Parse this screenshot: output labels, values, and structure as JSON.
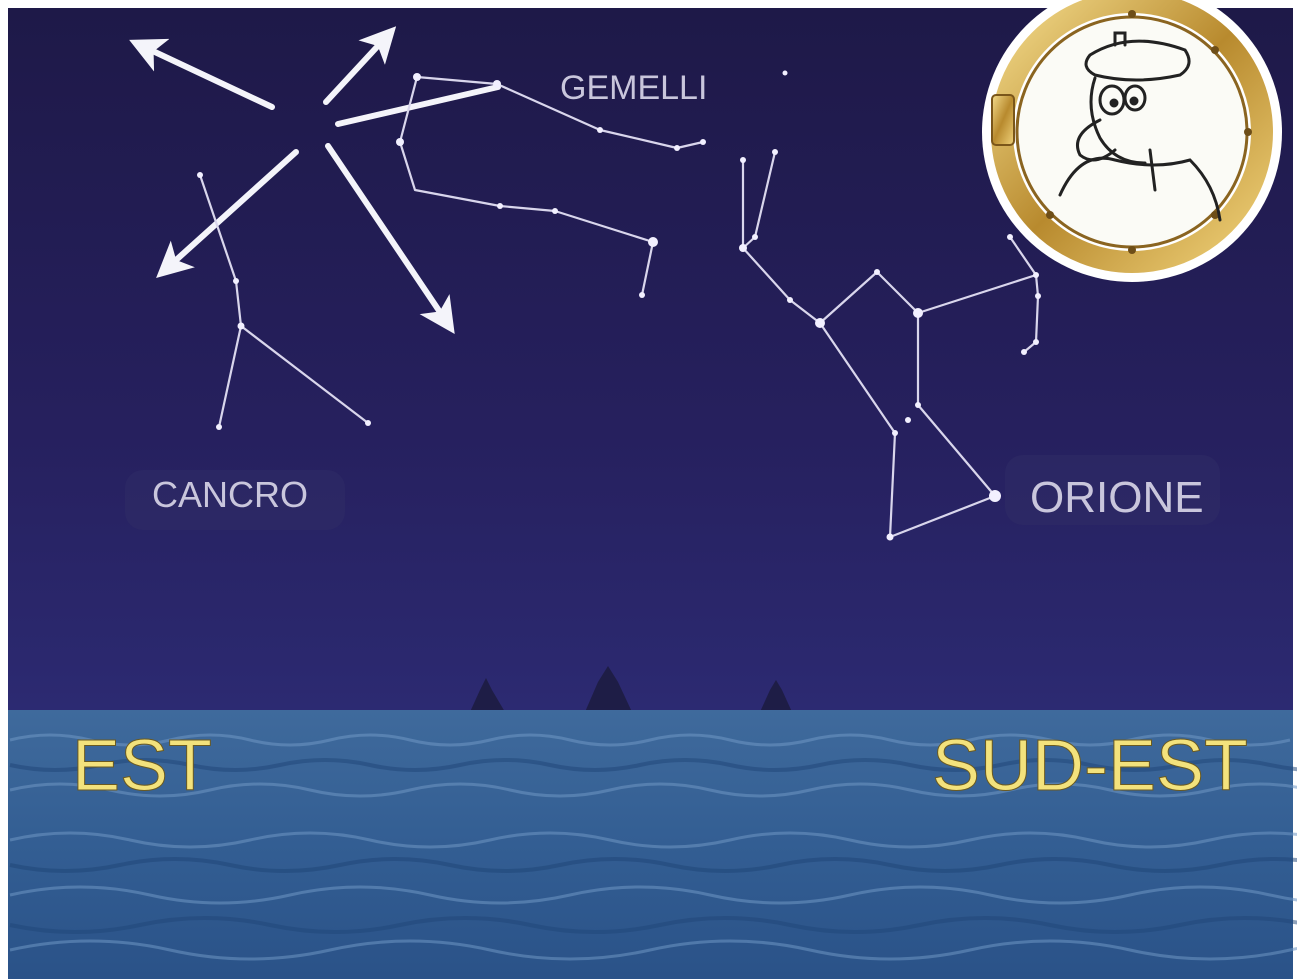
{
  "constellations": [
    {
      "label": "GEMELLI"
    },
    {
      "label": "CANCRO"
    },
    {
      "label": "ORIONE"
    }
  ],
  "directions": [
    "EST",
    "SUD-EST"
  ]
}
